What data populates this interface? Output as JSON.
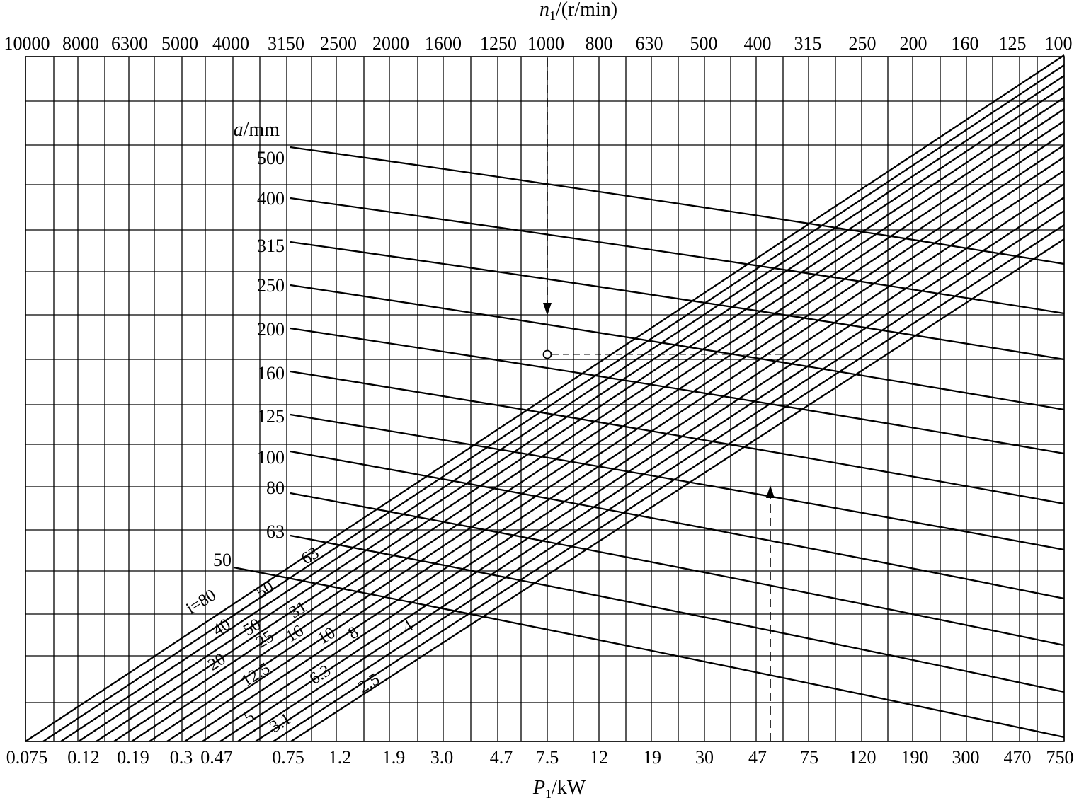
{
  "chart_data": {
    "type": "line",
    "top_axis": {
      "label_main": "n",
      "label_sub": "1",
      "label_unit": "/(r/min)",
      "ticks": [
        "10000",
        "8000",
        "6300",
        "5000",
        "4000",
        "3150",
        "2500",
        "2000",
        "1600",
        "1250",
        "1000",
        "800",
        "630",
        "500",
        "400",
        "315",
        "250",
        "200",
        "160",
        "125",
        "100"
      ]
    },
    "bottom_axis": {
      "label_main": "P",
      "label_sub": "1",
      "label_unit": "/kW",
      "ticks": [
        "0.075",
        "0.12",
        "0.19",
        "0.3",
        "0.47",
        "0.75",
        "1.2",
        "1.9",
        "3.0",
        "4.7",
        "7.5",
        "12",
        "19",
        "30",
        "47",
        "75",
        "120",
        "190",
        "300",
        "470",
        "750"
      ]
    },
    "a_axis": {
      "label_main": "a",
      "label_unit": "/mm",
      "values": [
        "500",
        "400",
        "315",
        "250",
        "200",
        "160",
        "125",
        "100",
        "80",
        "63",
        "50"
      ]
    },
    "ratio_labels": [
      "i=80",
      "63",
      "50",
      "50",
      "40",
      "31",
      "25",
      "20",
      "16",
      "12.5",
      "10",
      "8",
      "6.3",
      "5",
      "4",
      "3.1",
      "2.5"
    ],
    "example": {
      "n1": 1000,
      "P1": 55,
      "a": 180
    }
  }
}
